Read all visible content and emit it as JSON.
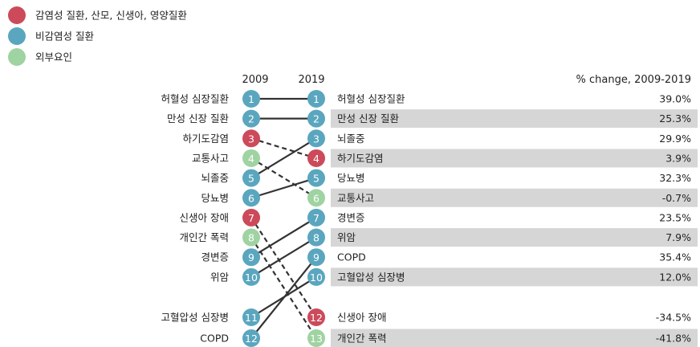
{
  "chart_data": {
    "type": "slope-rank",
    "title": "",
    "xlabel": "",
    "ylabel": "",
    "columns": {
      "left": "2009",
      "right": "2019",
      "change_header": "% change, 2009-2019"
    },
    "legend": {
      "placement": "top-left",
      "items": [
        {
          "label": "감염성 질환, 산모, 신생아, 영양질환",
          "color": "#cc4a5a",
          "category": "infectious"
        },
        {
          "label": "비감염성 질환",
          "color": "#5aa6be",
          "category": "noncommunicable"
        },
        {
          "label": "외부요인",
          "color": "#9fd3a2",
          "category": "external"
        }
      ]
    },
    "colors": {
      "infectious": "#cc4a5a",
      "noncommunicable": "#5aa6be",
      "external": "#9fd3a2",
      "line": "#333333",
      "band": "#d6d6d6"
    },
    "causes": [
      {
        "name": "허혈성 심장질환",
        "category": "noncommunicable",
        "rank_2009": 1,
        "rank_2019": 1,
        "change": "39.0%"
      },
      {
        "name": "만성 신장 질환",
        "category": "noncommunicable",
        "rank_2009": 2,
        "rank_2019": 2,
        "change": "25.3%"
      },
      {
        "name": "하기도감염",
        "category": "infectious",
        "rank_2009": 3,
        "rank_2019": 4,
        "change": "3.9%"
      },
      {
        "name": "교통사고",
        "category": "external",
        "rank_2009": 4,
        "rank_2019": 6,
        "change": "-0.7%"
      },
      {
        "name": "뇌졸중",
        "category": "noncommunicable",
        "rank_2009": 5,
        "rank_2019": 3,
        "change": "29.9%"
      },
      {
        "name": "당뇨병",
        "category": "noncommunicable",
        "rank_2009": 6,
        "rank_2019": 5,
        "change": "32.3%"
      },
      {
        "name": "신생아 장애",
        "category": "infectious",
        "rank_2009": 7,
        "rank_2019": 12,
        "change": "-34.5%"
      },
      {
        "name": "개인간 폭력",
        "category": "external",
        "rank_2009": 8,
        "rank_2019": 13,
        "change": "-41.8%"
      },
      {
        "name": "경변증",
        "category": "noncommunicable",
        "rank_2009": 9,
        "rank_2019": 7,
        "change": "23.5%"
      },
      {
        "name": "위암",
        "category": "noncommunicable",
        "rank_2009": 10,
        "rank_2019": 8,
        "change": "7.9%"
      },
      {
        "name": "고혈압성 심장병",
        "category": "noncommunicable",
        "rank_2009": 11,
        "rank_2019": 10,
        "change": "12.0%"
      },
      {
        "name": "COPD",
        "category": "noncommunicable",
        "rank_2009": 12,
        "rank_2019": 9,
        "change": "35.4%"
      }
    ]
  }
}
